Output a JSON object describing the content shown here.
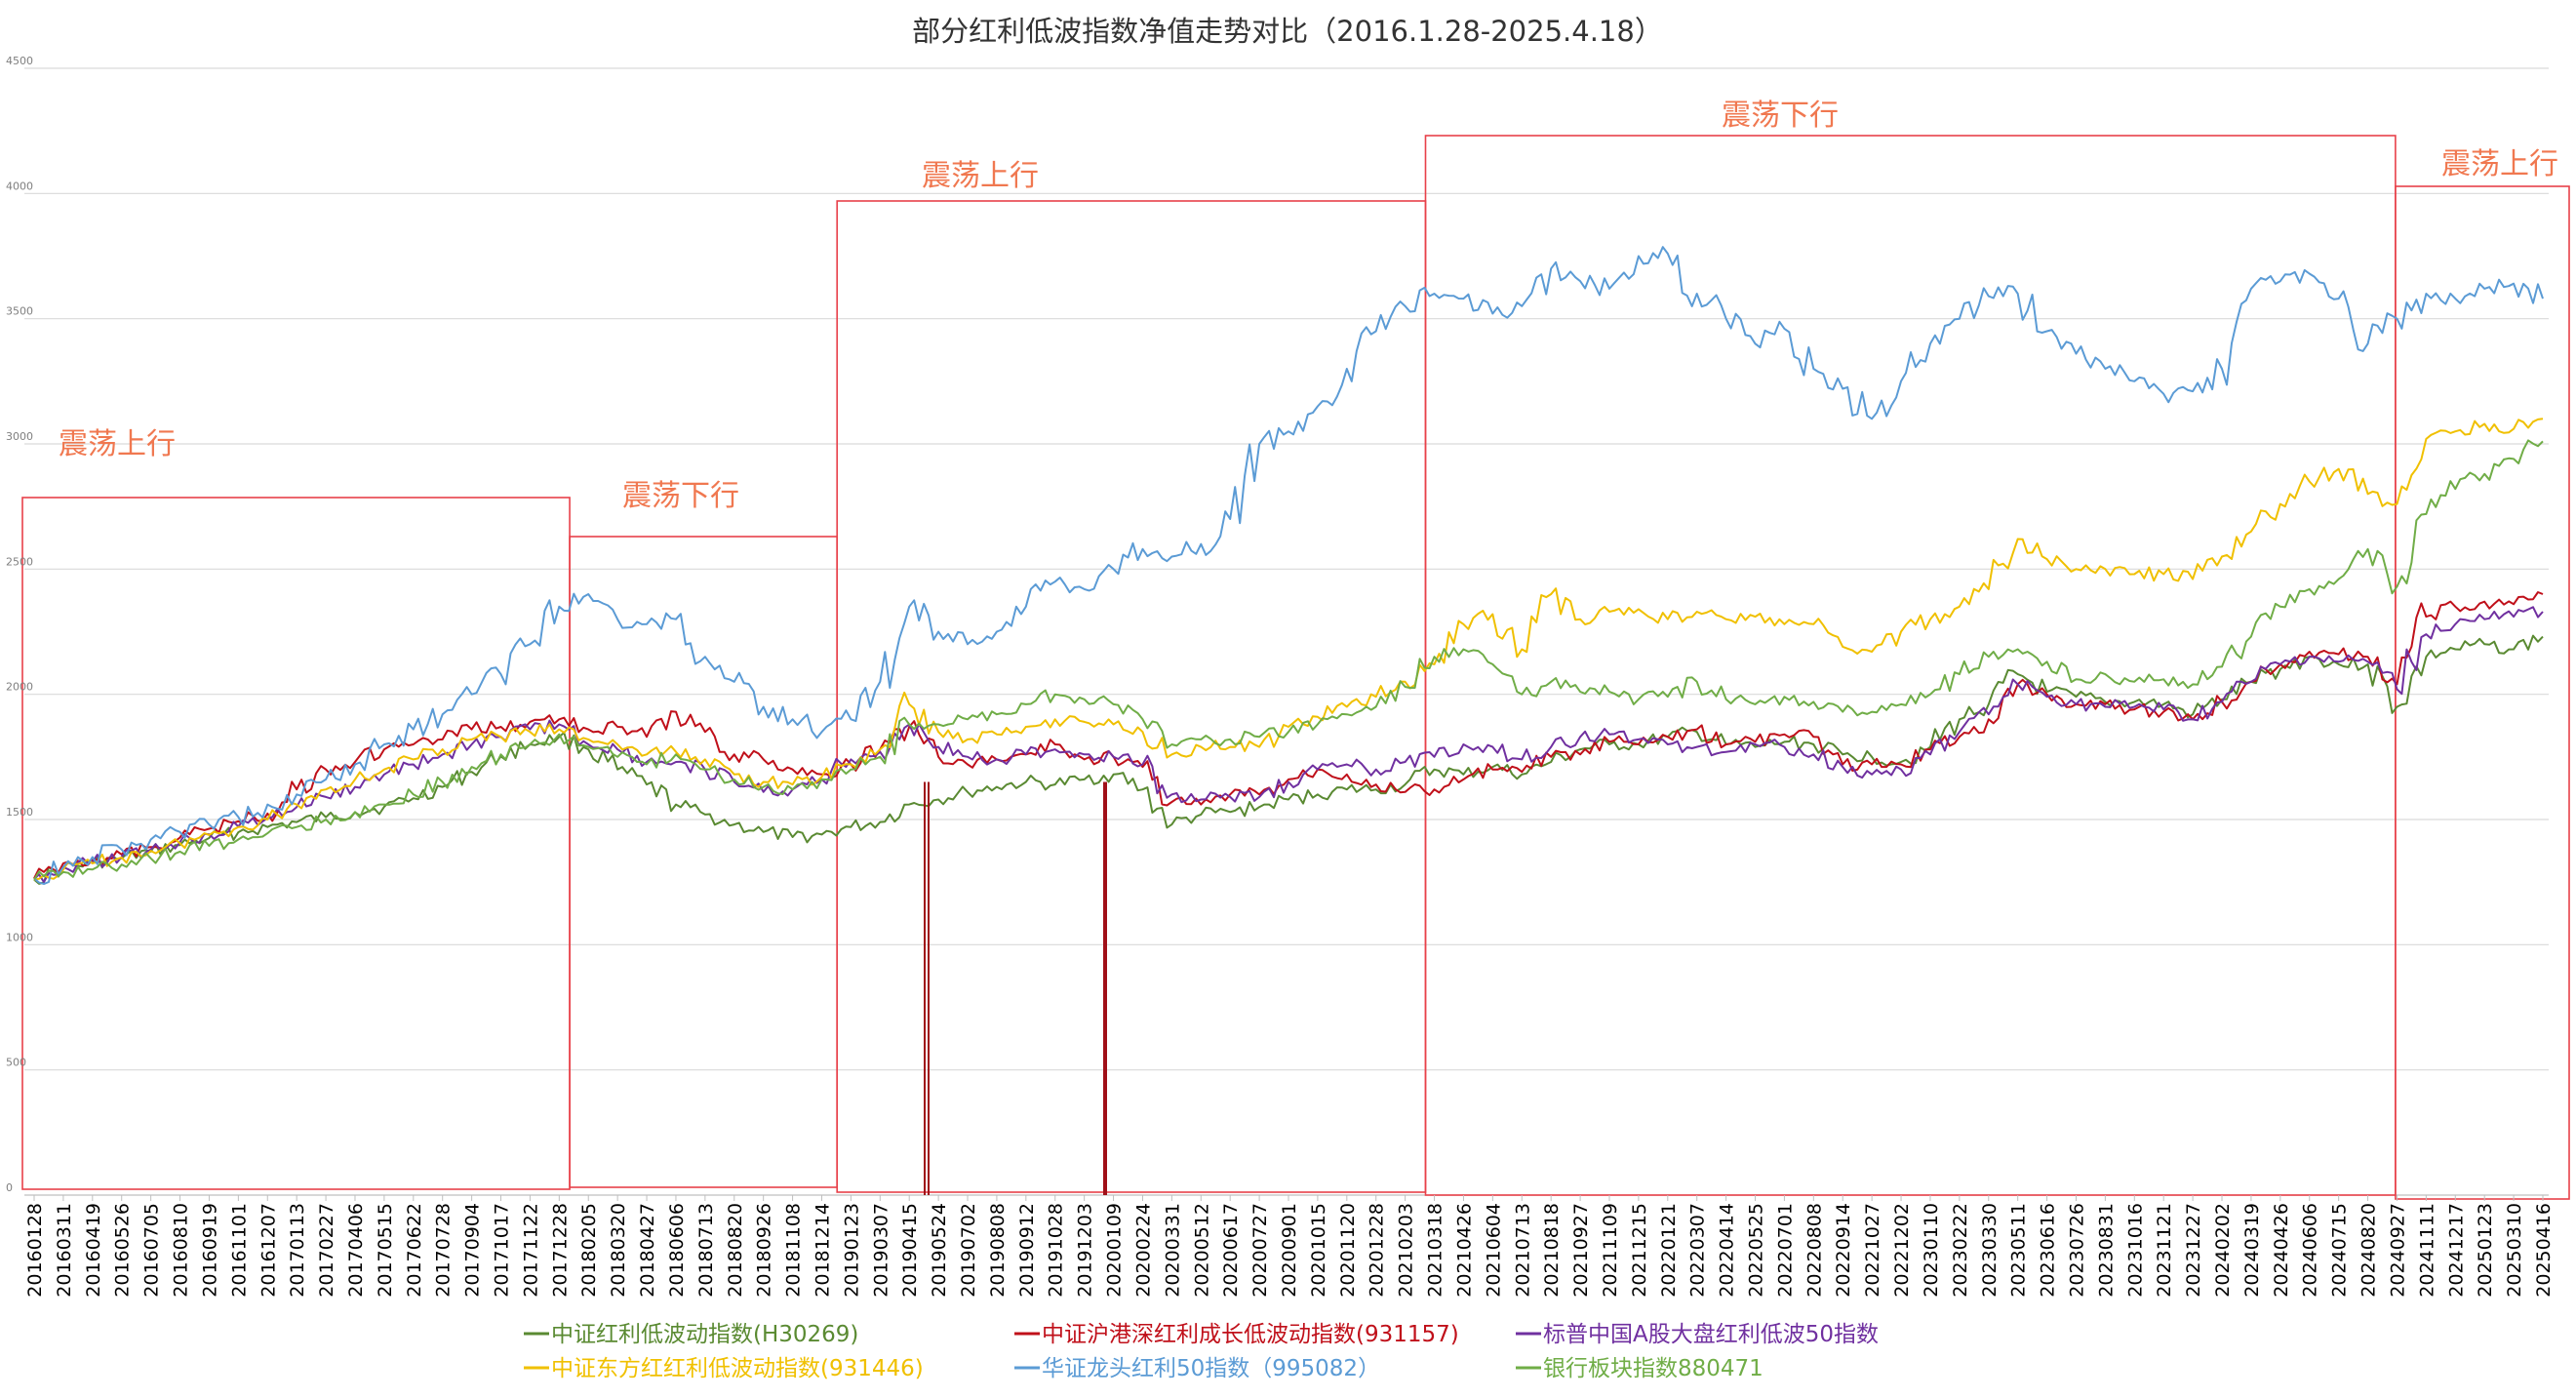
{
  "chart_data": {
    "type": "line",
    "title": "部分红利低波指数净值走势对比（2016.1.28-2025.4.18）",
    "xlabel": "",
    "ylabel": "",
    "ylim": [
      0,
      4500
    ],
    "yticks": [
      0,
      500,
      1000,
      1500,
      2000,
      2500,
      3000,
      3500,
      4000,
      4500
    ],
    "grid": true,
    "legend_position": "bottom",
    "x_tick_labels": [
      "20160128",
      "20160311",
      "20160419",
      "20160526",
      "20160705",
      "20160810",
      "20160919",
      "20161101",
      "20161207",
      "20170113",
      "20170227",
      "20170406",
      "20170515",
      "20170622",
      "20170728",
      "20170904",
      "20171017",
      "20171122",
      "20171228",
      "20180205",
      "20180320",
      "20180427",
      "20180606",
      "20180713",
      "20180820",
      "20180926",
      "20181108",
      "20181214",
      "20190123",
      "20190307",
      "20190415",
      "20190524",
      "20190702",
      "20190808",
      "20190912",
      "20191028",
      "20191203",
      "20200109",
      "20200224",
      "20200331",
      "20200512",
      "20200617",
      "20200727",
      "20200901",
      "20201015",
      "20201120",
      "20201228",
      "20210203",
      "20210318",
      "20210426",
      "20210604",
      "20210713",
      "20210818",
      "20210927",
      "20211109",
      "20211215",
      "20220121",
      "20220307",
      "20220414",
      "20220525",
      "20220701",
      "20220808",
      "20220914",
      "20221027",
      "20221202",
      "20230110",
      "20230222",
      "20230330",
      "20230511",
      "20230616",
      "20230726",
      "20230831",
      "20231016",
      "20231121",
      "20231227",
      "20240202",
      "20240319",
      "20240426",
      "20240606",
      "20240715",
      "20240820",
      "20240927",
      "20241111",
      "20241217",
      "20250123",
      "20250310",
      "20250416"
    ],
    "series": [
      {
        "name": "中证红利低波动指数(H30269)",
        "color": "#5a8a32",
        "values": [
          1260,
          1305,
          1325,
          1345,
          1372,
          1398,
          1426,
          1449,
          1470,
          1490,
          1509,
          1529,
          1551,
          1585,
          1630,
          1690,
          1752,
          1800,
          1830,
          1780,
          1700,
          1640,
          1560,
          1520,
          1480,
          1450,
          1430,
          1440,
          1470,
          1490,
          1560,
          1580,
          1610,
          1630,
          1650,
          1640,
          1660,
          1680,
          1620,
          1480,
          1520,
          1530,
          1550,
          1580,
          1600,
          1620,
          1620,
          1640,
          1700,
          1680,
          1710,
          1680,
          1730,
          1780,
          1800,
          1800,
          1830,
          1850,
          1800,
          1790,
          1810,
          1800,
          1760,
          1750,
          1730,
          1790,
          1900,
          1960,
          2080,
          2010,
          1990,
          1970,
          1970,
          1960,
          1920,
          1980,
          2050,
          2100,
          2150,
          2120,
          2120,
          1950,
          2150,
          2180,
          2200,
          2180,
          2230
        ]
      },
      {
        "name": "中证沪港深红利成长低波动指数(931157)",
        "color": "#c0101a",
        "values": [
          1265,
          1325,
          1340,
          1360,
          1390,
          1428,
          1463,
          1493,
          1524,
          1620,
          1700,
          1730,
          1780,
          1800,
          1820,
          1860,
          1870,
          1890,
          1900,
          1860,
          1870,
          1830,
          1930,
          1850,
          1760,
          1740,
          1700,
          1680,
          1720,
          1780,
          1870,
          1750,
          1720,
          1740,
          1760,
          1800,
          1740,
          1750,
          1710,
          1570,
          1560,
          1600,
          1600,
          1660,
          1700,
          1680,
          1640,
          1610,
          1620,
          1660,
          1700,
          1690,
          1750,
          1760,
          1810,
          1800,
          1830,
          1860,
          1800,
          1810,
          1840,
          1830,
          1720,
          1720,
          1720,
          1780,
          1830,
          1900,
          2040,
          2000,
          1960,
          1960,
          1940,
          1930,
          1900,
          1970,
          2050,
          2120,
          2170,
          2160,
          2150,
          2040,
          2310,
          2350,
          2370,
          2360,
          2400
        ]
      },
      {
        "name": "标普中国A股大盘红利低波50指数",
        "color": "#7030a0",
        "values": [
          1262,
          1310,
          1330,
          1350,
          1380,
          1410,
          1441,
          1472,
          1505,
          1550,
          1590,
          1630,
          1680,
          1720,
          1760,
          1800,
          1830,
          1860,
          1880,
          1800,
          1780,
          1730,
          1730,
          1700,
          1650,
          1610,
          1620,
          1660,
          1740,
          1770,
          1880,
          1790,
          1750,
          1740,
          1760,
          1780,
          1760,
          1750,
          1720,
          1600,
          1580,
          1590,
          1590,
          1650,
          1700,
          1720,
          1700,
          1730,
          1750,
          1800,
          1790,
          1740,
          1790,
          1830,
          1840,
          1820,
          1800,
          1790,
          1770,
          1800,
          1790,
          1760,
          1710,
          1680,
          1700,
          1760,
          1850,
          1920,
          2040,
          1990,
          1960,
          1950,
          1950,
          1940,
          1900,
          1970,
          2050,
          2120,
          2150,
          2130,
          2130,
          2020,
          2240,
          2280,
          2300,
          2310,
          2330
        ]
      },
      {
        "name": "中证东方红红利低波动指数(931446)",
        "color": "#f0c000",
        "values": [
          1260,
          1300,
          1325,
          1348,
          1375,
          1405,
          1438,
          1470,
          1500,
          1560,
          1620,
          1660,
          1700,
          1740,
          1780,
          1820,
          1830,
          1850,
          1860,
          1820,
          1800,
          1760,
          1770,
          1740,
          1680,
          1650,
          1640,
          1670,
          1720,
          1780,
          1960,
          1850,
          1820,
          1840,
          1870,
          1900,
          1890,
          1880,
          1850,
          1760,
          1790,
          1790,
          1790,
          1870,
          1910,
          1950,
          1990,
          2050,
          2120,
          2280,
          2320,
          2180,
          2400,
          2300,
          2330,
          2340,
          2300,
          2330,
          2300,
          2310,
          2280,
          2280,
          2190,
          2170,
          2250,
          2300,
          2350,
          2420,
          2620,
          2540,
          2500,
          2500,
          2480,
          2480,
          2460,
          2550,
          2650,
          2760,
          2850,
          2900,
          2800,
          2760,
          3020,
          3050,
          3080,
          3060,
          3100
        ]
      },
      {
        "name": "华证龙头红利50指数（995082）",
        "color": "#5b9bd5",
        "values": [
          1265,
          1310,
          1350,
          1380,
          1420,
          1450,
          1480,
          1510,
          1560,
          1600,
          1660,
          1720,
          1800,
          1860,
          1920,
          2000,
          2080,
          2200,
          2350,
          2400,
          2300,
          2280,
          2300,
          2150,
          2050,
          1950,
          1900,
          1850,
          1900,
          2050,
          2350,
          2250,
          2200,
          2250,
          2350,
          2450,
          2420,
          2500,
          2580,
          2550,
          2600,
          2700,
          3000,
          3050,
          3150,
          3300,
          3450,
          3550,
          3600,
          3580,
          3520,
          3550,
          3700,
          3650,
          3620,
          3750,
          3760,
          3600,
          3500,
          3400,
          3460,
          3300,
          3220,
          3100,
          3250,
          3400,
          3500,
          3590,
          3600,
          3450,
          3360,
          3300,
          3250,
          3200,
          3210,
          3300,
          3620,
          3650,
          3680,
          3580,
          3400,
          3500,
          3600,
          3580,
          3620,
          3640,
          3580
        ]
      },
      {
        "name": "银行板块指数880471",
        "color": "#70ad47",
        "values": [
          1260,
          1290,
          1300,
          1320,
          1345,
          1372,
          1395,
          1420,
          1445,
          1470,
          1500,
          1530,
          1560,
          1600,
          1650,
          1710,
          1760,
          1800,
          1840,
          1790,
          1750,
          1720,
          1760,
          1700,
          1660,
          1630,
          1620,
          1660,
          1700,
          1750,
          1880,
          1880,
          1900,
          1920,
          1960,
          2000,
          1980,
          1960,
          1900,
          1800,
          1820,
          1820,
          1830,
          1850,
          1880,
          1920,
          1950,
          2030,
          2150,
          2180,
          2120,
          2000,
          2050,
          2010,
          2010,
          1980,
          1990,
          2050,
          1980,
          1960,
          1990,
          1970,
          1930,
          1930,
          1960,
          2000,
          2080,
          2150,
          2180,
          2130,
          2060,
          2080,
          2050,
          2060,
          2040,
          2110,
          2230,
          2350,
          2420,
          2460,
          2580,
          2430,
          2720,
          2820,
          2880,
          2940,
          3010
        ]
      }
    ],
    "annotations": [
      {
        "label": "震荡上行",
        "from": "20160128",
        "to": "20180111"
      },
      {
        "label": "震荡下行",
        "from": "20180111",
        "to": "20190104"
      },
      {
        "label": "震荡上行",
        "from": "20190104",
        "to": "20210305"
      },
      {
        "label": "震荡下行",
        "from": "20210305",
        "to": "20240925"
      },
      {
        "label": "震荡上行",
        "from": "20240925",
        "to": "20250418"
      }
    ]
  }
}
